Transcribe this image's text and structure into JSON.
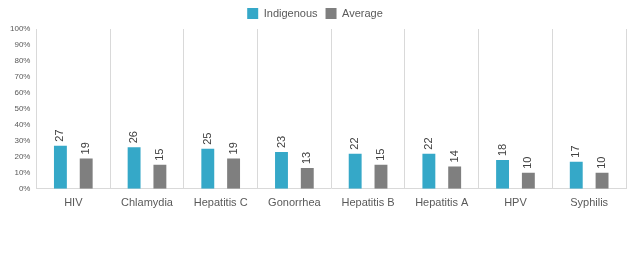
{
  "chart_data": {
    "type": "bar",
    "categories": [
      "HIV",
      "Chlamydia",
      "Hepatitis C",
      "Gonorrhea",
      "Hepatitis B",
      "Hepatitis A",
      "HPV",
      "Syphilis"
    ],
    "series": [
      {
        "name": "Indigenous",
        "color": "#35a8c8",
        "values": [
          27,
          26,
          25,
          23,
          22,
          22,
          18,
          17
        ]
      },
      {
        "name": "Average",
        "color": "#7f7f7f",
        "values": [
          19,
          15,
          19,
          13,
          15,
          14,
          10,
          10
        ]
      }
    ],
    "ylim": [
      0,
      100
    ],
    "yticks": [
      {
        "value": 0,
        "label": "0%"
      },
      {
        "value": 10,
        "label": "10%"
      },
      {
        "value": 20,
        "label": "20%"
      },
      {
        "value": 30,
        "label": "30%"
      },
      {
        "value": 40,
        "label": "40%"
      },
      {
        "value": 50,
        "label": "50%"
      },
      {
        "value": 60,
        "label": "60%"
      },
      {
        "value": 70,
        "label": "70%"
      },
      {
        "value": 80,
        "label": "80%"
      },
      {
        "value": 90,
        "label": "90%"
      },
      {
        "value": 100,
        "label": "100%"
      }
    ],
    "grid": true,
    "legend": "top",
    "data_labels": true
  }
}
